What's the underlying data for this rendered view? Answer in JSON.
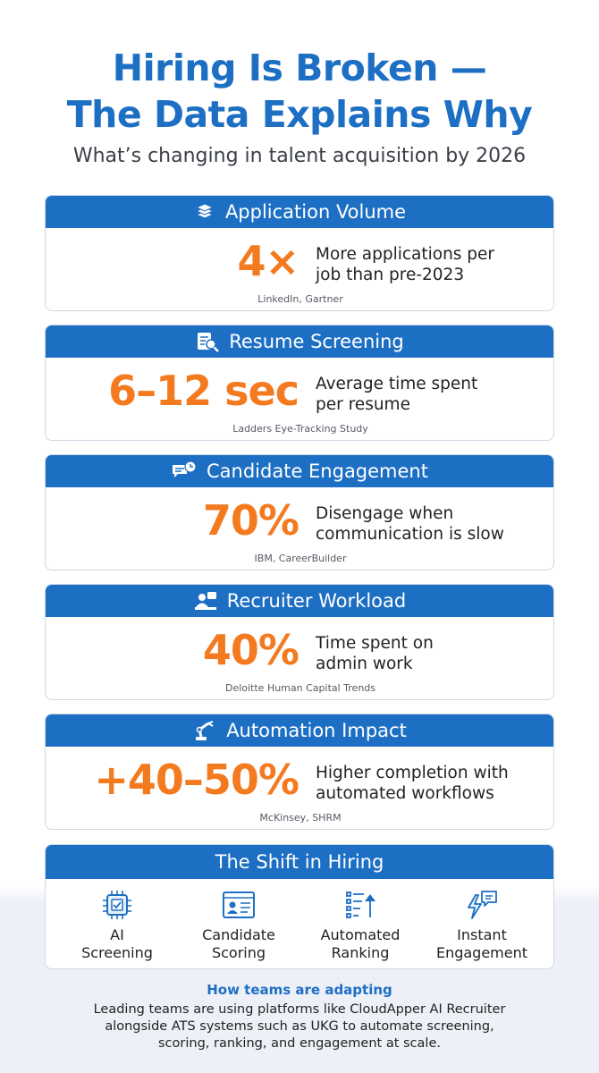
{
  "header": {
    "title_line1": "Hiring Is Broken —",
    "title_line2": "The Data Explains Why",
    "subtitle": "What’s changing in talent acquisition by 2026"
  },
  "cards": [
    {
      "title": "Application Volume",
      "icon": "stacked-papers-icon",
      "stat": "4×",
      "desc_line1": "More applications per",
      "desc_line2": "job than pre-2023",
      "source": "LinkedIn, Gartner"
    },
    {
      "title": "Resume Screening",
      "icon": "resume-magnifier-icon",
      "stat": "6–12 sec",
      "desc_line1": "Average time spent",
      "desc_line2": "per resume",
      "source": "Ladders Eye-Tracking Study"
    },
    {
      "title": "Candidate Engagement",
      "icon": "chat-clock-icon",
      "stat": "70%",
      "desc_line1": "Disengage when",
      "desc_line2": "communication is slow",
      "source": "IBM, CareerBuilder"
    },
    {
      "title": "Recruiter Workload",
      "icon": "recruiter-desk-icon",
      "stat": "40%",
      "desc_line1": "Time spent on",
      "desc_line2": "admin work",
      "source": "Deloitte Human Capital Trends"
    },
    {
      "title": "Automation Impact",
      "icon": "robot-arm-icon",
      "stat": "+40–50%",
      "desc_line1": "Higher completion with",
      "desc_line2": "automated workflows",
      "source": "McKinsey, SHRM"
    }
  ],
  "shift": {
    "title": "The Shift in Hiring",
    "items": [
      {
        "line1": "AI",
        "line2": "Screening",
        "icon": "ai-chip-icon"
      },
      {
        "line1": "Candidate",
        "line2": "Scoring",
        "icon": "candidate-profile-icon"
      },
      {
        "line1": "Automated",
        "line2": "Ranking",
        "icon": "ranking-list-icon"
      },
      {
        "line1": "Instant",
        "line2": "Engagement",
        "icon": "lightning-chat-icon"
      }
    ]
  },
  "adapt": {
    "title": "How teams are adapting",
    "line1": "Leading teams are using platforms like CloudApper AI Recruiter",
    "line2": "alongside ATS systems such as UKG to automate screening,",
    "line3": "scoring, ranking, and engagement at scale."
  },
  "colors": {
    "brand_blue": "#1d6fc4",
    "stat_orange": "#f47a20"
  }
}
